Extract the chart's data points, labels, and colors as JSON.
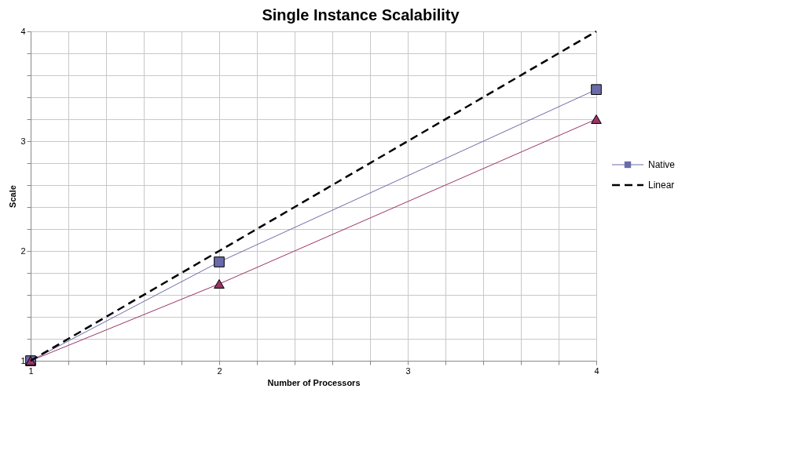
{
  "chart_data": {
    "type": "line",
    "title": "Single Instance Scalability",
    "xlabel": "Number of Processors",
    "ylabel": "Scale",
    "x": [
      1,
      2,
      4
    ],
    "series": [
      {
        "name": "Native",
        "color": "#6b6baa",
        "values": [
          1,
          1.9,
          3.47
        ],
        "marker": "square",
        "line_style": "solid"
      },
      {
        "color": "#993366",
        "values": [
          1,
          1.7,
          3.2
        ],
        "marker": "triangle",
        "line_style": "solid"
      },
      {
        "name": "Linear",
        "color": "#000000",
        "values": [
          1,
          2,
          4
        ],
        "marker": "none",
        "line_style": "dashed"
      }
    ],
    "xlim": [
      1,
      4
    ],
    "ylim": [
      1,
      4
    ],
    "xticks": [
      1,
      {
        "value": 1.2,
        "label": null
      },
      {
        "value": 1.4,
        "label": null
      },
      {
        "value": 1.6,
        "label": null
      },
      {
        "value": 1.8,
        "label": null
      },
      2,
      {
        "value": 2.2,
        "label": null
      },
      {
        "value": 2.4,
        "label": null
      },
      {
        "value": 2.6,
        "label": null
      },
      {
        "value": 2.8,
        "label": null
      },
      3,
      {
        "value": 3.2,
        "label": null
      },
      {
        "value": 3.4,
        "label": null
      },
      {
        "value": 3.6,
        "label": null
      },
      {
        "value": 3.8,
        "label": null
      },
      4
    ],
    "yticks": [
      1,
      {
        "value": 1.2,
        "label": null
      },
      {
        "value": 1.4,
        "label": null
      },
      {
        "value": 1.6,
        "label": null
      },
      {
        "value": 1.8,
        "label": null
      },
      2,
      {
        "value": 2.2,
        "label": null
      },
      {
        "value": 2.4,
        "label": null
      },
      {
        "value": 2.6,
        "label": null
      },
      {
        "value": 2.8,
        "label": null
      },
      3,
      {
        "value": 3.2,
        "label": null
      },
      {
        "value": 3.4,
        "label": null
      },
      {
        "value": 3.6,
        "label": null
      },
      {
        "value": 3.8,
        "label": null
      },
      4
    ],
    "grid": true,
    "legend": "right"
  }
}
